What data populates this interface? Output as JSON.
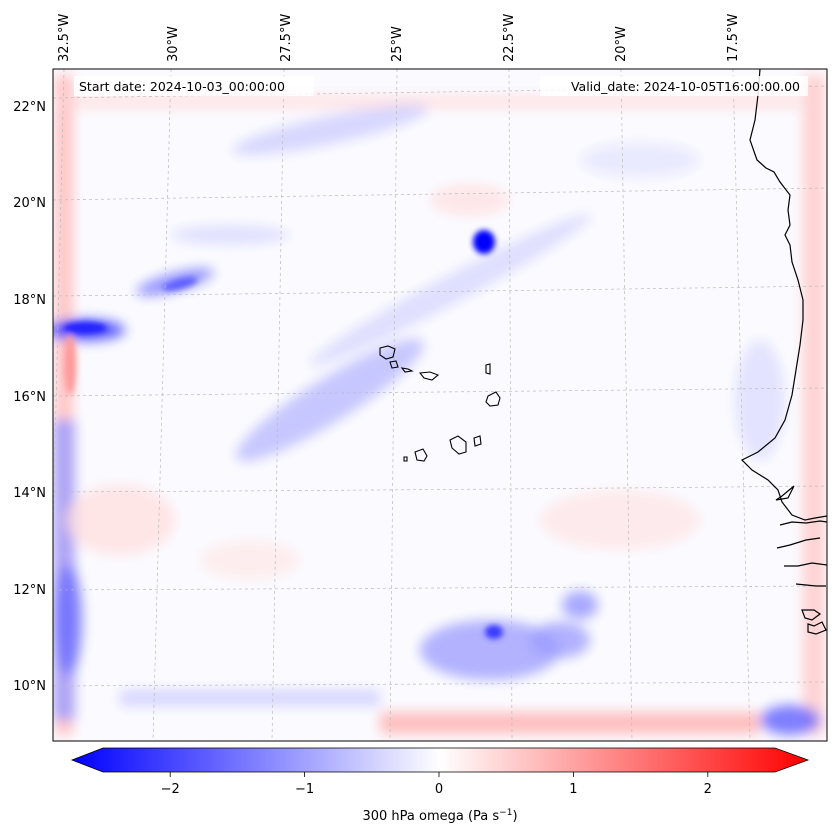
{
  "header": {
    "start_date": "Start date: 2024-10-03_00:00:00",
    "valid_date": "Valid_date: 2024-10-05T16:00:00.00"
  },
  "map": {
    "lon_labels": [
      "32.5°W",
      "30°W",
      "27.5°W",
      "25°W",
      "22.5°W",
      "20°W",
      "17.5°W"
    ],
    "lat_labels": [
      "22°N",
      "20°N",
      "18°N",
      "16°N",
      "14°N",
      "12°N",
      "10°N"
    ],
    "field_colors": {
      "negative": "#0000ff",
      "neutral": "#ffffff",
      "positive": "#ff0000"
    }
  },
  "colorbar": {
    "label": "300 hPa omega (Pa s",
    "label_sup": "−1",
    "label_end": ")",
    "ticks": [
      "−2",
      "−1",
      "0",
      "1",
      "2"
    ],
    "tick_values": [
      -2,
      -1,
      0,
      1,
      2
    ],
    "range": [
      -2.5,
      2.5
    ]
  }
}
